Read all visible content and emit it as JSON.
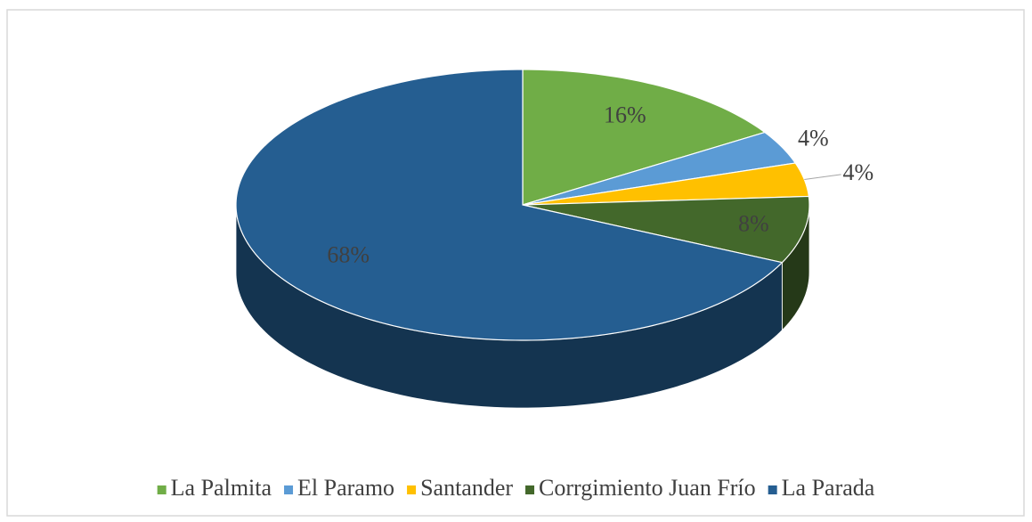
{
  "chart_data": {
    "type": "pie3d",
    "categories": [
      "La Palmita",
      "El Paramo",
      "Santander",
      "Corrgimiento Juan Frío",
      "La Parada"
    ],
    "values": [
      16,
      4,
      4,
      8,
      68
    ],
    "value_labels": [
      "16%",
      "4%",
      "4%",
      "8%",
      "68%"
    ],
    "colors": [
      "#70ad47",
      "#5b9bd5",
      "#ffc000",
      "#43682b",
      "#255e91"
    ],
    "legend": "bottom"
  }
}
